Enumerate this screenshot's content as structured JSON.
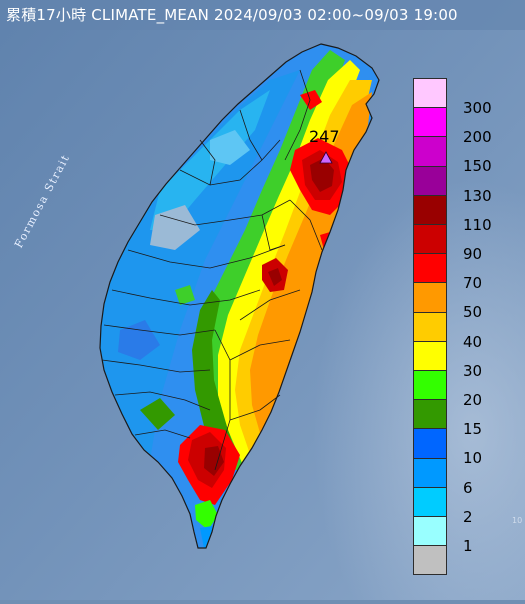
{
  "title": "累積17小時 CLIMATE_MEAN 2024/09/03 02:00~09/03 19:00",
  "peak_value": "247",
  "sea_label": "Formosa Strait",
  "corner_mark": "10",
  "legend": [
    {
      "label": "300",
      "color": "#ffc8ff"
    },
    {
      "label": "200",
      "color": "#ff00ff"
    },
    {
      "label": "150",
      "color": "#cc00cc"
    },
    {
      "label": "130",
      "color": "#990099"
    },
    {
      "label": "110",
      "color": "#990000"
    },
    {
      "label": "90",
      "color": "#cc0000"
    },
    {
      "label": "70",
      "color": "#ff0000"
    },
    {
      "label": "50",
      "color": "#ff9900"
    },
    {
      "label": "40",
      "color": "#ffcc00"
    },
    {
      "label": "30",
      "color": "#ffff00"
    },
    {
      "label": "20",
      "color": "#33ff00"
    },
    {
      "label": "15",
      "color": "#339900"
    },
    {
      "label": "10",
      "color": "#0066ff"
    },
    {
      "label": "6",
      "color": "#0099ff"
    },
    {
      "label": "2",
      "color": "#00ccff"
    },
    {
      "label": "1",
      "color": "#99ffff"
    },
    {
      "label": "",
      "color": "#c0c0c0"
    }
  ]
}
